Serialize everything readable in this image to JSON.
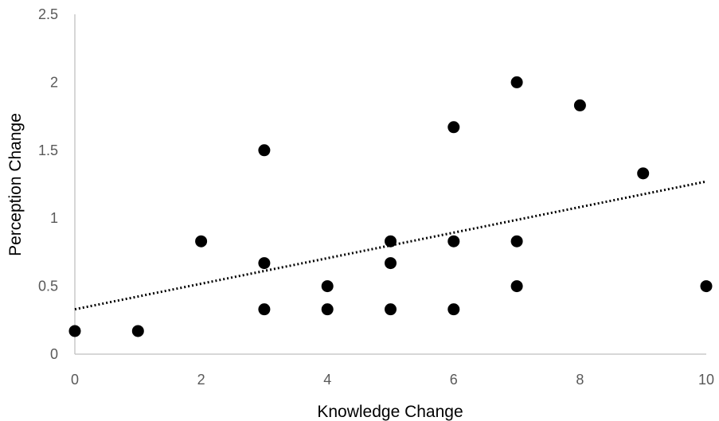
{
  "chart_data": {
    "type": "scatter",
    "title": "",
    "xlabel": "Knowledge Change",
    "ylabel": "Perception Change",
    "xlim": [
      0,
      10
    ],
    "ylim": [
      0,
      2.5
    ],
    "x_ticks": [
      "0",
      "2",
      "4",
      "6",
      "8",
      "10"
    ],
    "y_ticks": [
      "0",
      "0.5",
      "1",
      "1.5",
      "2",
      "2.5"
    ],
    "x_tick_values": [
      0,
      2,
      4,
      6,
      8,
      10
    ],
    "y_tick_values": [
      0,
      0.5,
      1,
      1.5,
      2,
      2.5
    ],
    "grid": false,
    "legend": "none",
    "points": [
      {
        "x": 0,
        "y": 0.17
      },
      {
        "x": 1,
        "y": 0.17
      },
      {
        "x": 2,
        "y": 0.83
      },
      {
        "x": 3,
        "y": 1.5
      },
      {
        "x": 3,
        "y": 0.67
      },
      {
        "x": 3,
        "y": 0.33
      },
      {
        "x": 4,
        "y": 0.5
      },
      {
        "x": 4,
        "y": 0.33
      },
      {
        "x": 5,
        "y": 0.83
      },
      {
        "x": 5,
        "y": 0.67
      },
      {
        "x": 5,
        "y": 0.33
      },
      {
        "x": 6,
        "y": 1.67
      },
      {
        "x": 6,
        "y": 0.83
      },
      {
        "x": 6,
        "y": 0.33
      },
      {
        "x": 7,
        "y": 2.0
      },
      {
        "x": 7,
        "y": 0.83
      },
      {
        "x": 7,
        "y": 0.5
      },
      {
        "x": 8,
        "y": 1.83
      },
      {
        "x": 9,
        "y": 1.33
      },
      {
        "x": 10,
        "y": 0.5
      }
    ],
    "trendline": {
      "type": "linear",
      "style": "dotted",
      "x": [
        0,
        10
      ],
      "y": [
        0.33,
        1.27
      ]
    },
    "colors": {
      "marker": "#000000",
      "trendline": "#000000",
      "axis": "#bfbfbf",
      "tick_text": "#595959"
    }
  }
}
